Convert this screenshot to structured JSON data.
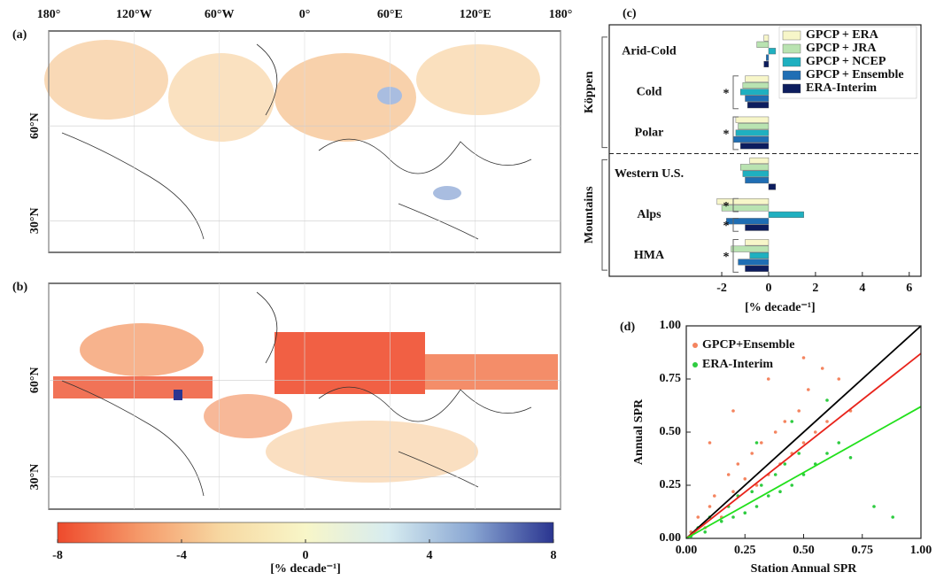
{
  "chart_data": [
    {
      "type": "map",
      "label": "(a)",
      "xlim": [
        -180,
        180
      ],
      "xticks": [
        {
          "value": -180,
          "label": "180°"
        },
        {
          "value": -120,
          "label": "120°W"
        },
        {
          "value": -60,
          "label": "60°W"
        },
        {
          "value": 0,
          "label": "0°"
        },
        {
          "value": 60,
          "label": "60°E"
        },
        {
          "value": 120,
          "label": "120°E"
        },
        {
          "value": 180,
          "label": "180°"
        }
      ],
      "ylim": [
        20,
        90
      ],
      "yticks": [
        {
          "value": 30,
          "label": "30°N"
        },
        {
          "value": 60,
          "label": "60°N"
        }
      ]
    },
    {
      "type": "map",
      "label": "(b)",
      "ylim": [
        20,
        90
      ],
      "yticks": [
        {
          "value": 30,
          "label": "30°N"
        },
        {
          "value": 60,
          "label": "60°N"
        }
      ]
    },
    {
      "type": "colorbar",
      "colors": [
        "#ee4a2c",
        "#f59a6a",
        "#f7d9a3",
        "#f8f6c8",
        "#d7ecf0",
        "#8aa7d3",
        "#2a3590"
      ],
      "xlim": [
        -8,
        8
      ],
      "xticks": [
        -8,
        -4,
        0,
        4,
        8
      ],
      "xlabel": "[% decade⁻¹]"
    },
    {
      "type": "hbar",
      "label": "(c)",
      "categories": [
        "Arid-Cold",
        "Cold",
        "Polar",
        "Western U.S.",
        "Alps",
        "HMA"
      ],
      "series": [
        {
          "name": "GPCP + ERA",
          "color": "#f7f6c9",
          "values": [
            -0.2,
            -1.0,
            -1.4,
            -0.8,
            -2.2,
            -1.0
          ]
        },
        {
          "name": "GPCP + JRA",
          "color": "#b9e3b1",
          "values": [
            -0.5,
            -1.1,
            -1.3,
            -1.2,
            -2.0,
            -1.6
          ]
        },
        {
          "name": "GPCP + NCEP",
          "color": "#1fb0c0",
          "values": [
            0.3,
            -1.2,
            -1.4,
            -1.1,
            1.5,
            -0.8
          ]
        },
        {
          "name": "GPCP + Ensemble",
          "color": "#1f6eb4",
          "values": [
            -0.1,
            -1.0,
            -1.5,
            -1.0,
            -1.8,
            -1.3
          ]
        },
        {
          "name": "ERA-Interim",
          "color": "#0d1d5e",
          "values": [
            -0.2,
            -0.9,
            -1.2,
            0.3,
            -1.0,
            -1.0
          ]
        }
      ],
      "xlim": [
        -6.8,
        6.5
      ],
      "xticks": [
        -2,
        0,
        2,
        4,
        6
      ],
      "xlabel": "[% decade⁻¹]",
      "groups": [
        {
          "label": "Köppen",
          "from": "Arid-Cold",
          "to": "Polar"
        },
        {
          "label": "Mountains",
          "from": "Western U.S.",
          "to": "HMA"
        }
      ],
      "annotations": [
        {
          "text": "*",
          "category": "Cold",
          "series": [
            "GPCP + ERA",
            "ERA-Interim"
          ]
        },
        {
          "text": "*",
          "category": "Polar",
          "series": [
            "GPCP + ERA",
            "ERA-Interim"
          ]
        },
        {
          "text": "*",
          "category": "Alps",
          "series": [
            "GPCP + ERA",
            "GPCP + JRA"
          ]
        },
        {
          "text": "*",
          "category": "Alps",
          "series": [
            "GPCP + Ensemble",
            "ERA-Interim"
          ]
        },
        {
          "text": "*",
          "category": "HMA",
          "series": [
            "GPCP + ERA",
            "ERA-Interim"
          ]
        }
      ]
    },
    {
      "type": "scatter",
      "label": "(d)",
      "xlabel": "Station Annual SPR",
      "ylabel": "Annual SPR",
      "xlim": [
        0,
        1
      ],
      "ylim": [
        0,
        1
      ],
      "xticks": [
        {
          "value": 0,
          "label": "0.00"
        },
        {
          "value": 0.25,
          "label": "0.25"
        },
        {
          "value": 0.5,
          "label": "0.50"
        },
        {
          "value": 0.75,
          "label": "0.75"
        },
        {
          "value": 1,
          "label": "1.00"
        }
      ],
      "yticks": [
        {
          "value": 0,
          "label": "0.00"
        },
        {
          "value": 0.25,
          "label": "0.25"
        },
        {
          "value": 0.5,
          "label": "0.50"
        },
        {
          "value": 0.75,
          "label": "0.75"
        },
        {
          "value": 1,
          "label": "1.00"
        }
      ],
      "series": [
        {
          "name": "GPCP+Ensemble",
          "color": "#f4845f",
          "x": [
            0.02,
            0.05,
            0.08,
            0.1,
            0.12,
            0.15,
            0.18,
            0.2,
            0.22,
            0.25,
            0.28,
            0.3,
            0.32,
            0.35,
            0.38,
            0.4,
            0.42,
            0.45,
            0.48,
            0.5,
            0.52,
            0.55,
            0.58,
            0.6,
            0.65,
            0.7,
            0.1,
            0.2,
            0.35,
            0.5
          ],
          "values": [
            0.03,
            0.1,
            0.05,
            0.15,
            0.2,
            0.1,
            0.3,
            0.22,
            0.35,
            0.28,
            0.4,
            0.25,
            0.45,
            0.3,
            0.5,
            0.35,
            0.55,
            0.4,
            0.6,
            0.45,
            0.7,
            0.5,
            0.8,
            0.55,
            0.75,
            0.6,
            0.45,
            0.6,
            0.75,
            0.85
          ]
        },
        {
          "name": "ERA-Interim",
          "color": "#2ecc40",
          "x": [
            0.02,
            0.05,
            0.08,
            0.1,
            0.15,
            0.18,
            0.2,
            0.22,
            0.25,
            0.28,
            0.3,
            0.32,
            0.35,
            0.38,
            0.4,
            0.42,
            0.45,
            0.48,
            0.5,
            0.55,
            0.6,
            0.65,
            0.7,
            0.8,
            0.88,
            0.3,
            0.45,
            0.6
          ],
          "values": [
            0.01,
            0.05,
            0.03,
            0.1,
            0.08,
            0.15,
            0.1,
            0.2,
            0.12,
            0.22,
            0.15,
            0.25,
            0.2,
            0.3,
            0.22,
            0.35,
            0.25,
            0.4,
            0.3,
            0.35,
            0.4,
            0.45,
            0.38,
            0.15,
            0.1,
            0.45,
            0.55,
            0.65
          ]
        }
      ],
      "lines": [
        {
          "color": "#000000",
          "x": [
            0,
            1
          ],
          "values": [
            0,
            1
          ]
        },
        {
          "color": "#e8231b",
          "x": [
            0,
            1
          ],
          "values": [
            0,
            0.87
          ]
        },
        {
          "color": "#22e01c",
          "x": [
            0,
            1
          ],
          "values": [
            0,
            0.62
          ]
        }
      ]
    }
  ]
}
